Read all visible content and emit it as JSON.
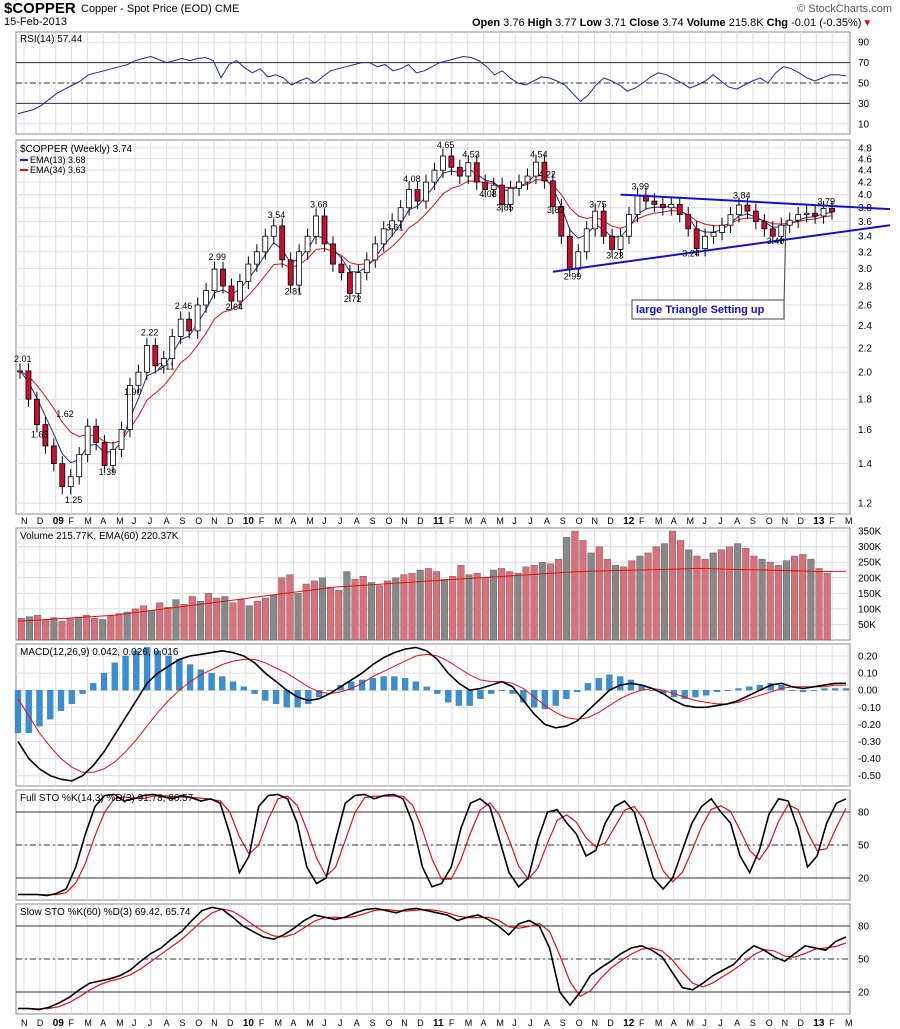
{
  "header": {
    "symbol": "$COPPER",
    "description": "Copper - Spot Price (EOD)",
    "exchange": "CME",
    "date": "15-Feb-2013",
    "open_label": "Open",
    "open": "3.76",
    "high_label": "High",
    "high": "3.77",
    "low_label": "Low",
    "low": "3.71",
    "close_label": "Close",
    "close": "3.74",
    "volume_label": "Volume",
    "volume": "215.8K",
    "chg_label": "Chg",
    "chg": "-0.01 (-0.35%)",
    "watermark": "© StockCharts.com"
  },
  "colors": {
    "price_line": "#000000",
    "ema13": "#1a2a9a",
    "ema34": "#e01010",
    "volume_up": "#888888",
    "volume_down": "#d9707a",
    "macd_hist": "#3a8fd0",
    "trendline": "#1010d0",
    "grid": "#dcdcdc"
  },
  "chart_data": [
    {
      "type": "line",
      "panel": "rsi",
      "label": "RSI(14) 57.44",
      "yticks": [
        "90",
        "70",
        "50",
        "30",
        "10"
      ],
      "ylim": [
        0,
        100
      ],
      "values": [
        20,
        22,
        24,
        28,
        34,
        40,
        44,
        48,
        52,
        58,
        60,
        62,
        64,
        66,
        68,
        72,
        74,
        76,
        73,
        70,
        72,
        74,
        72,
        74,
        75,
        72,
        55,
        68,
        72,
        65,
        60,
        64,
        56,
        58,
        55,
        48,
        52,
        55,
        50,
        56,
        62,
        64,
        66,
        68,
        70,
        70,
        66,
        68,
        62,
        64,
        68,
        60,
        62,
        66,
        70,
        72,
        74,
        76,
        75,
        72,
        66,
        58,
        62,
        55,
        50,
        48,
        52,
        56,
        55,
        52,
        48,
        40,
        32,
        38,
        48,
        55,
        52,
        48,
        42,
        45,
        50,
        56,
        60,
        58,
        54,
        50,
        45,
        48,
        52,
        58,
        52,
        46,
        44,
        48,
        52,
        55,
        50,
        60,
        66,
        64,
        60,
        55,
        52,
        55,
        58,
        58,
        57
      ]
    },
    {
      "type": "candlestick",
      "panel": "price",
      "label": "$COPPER (Weekly) 3.74",
      "legend": [
        "EMA(13) 3.68",
        "EMA(34) 3.63"
      ],
      "yticks": [
        "4.8",
        "4.6",
        "4.4",
        "4.2",
        "4.0",
        "3.8",
        "3.6",
        "3.4",
        "3.2",
        "3.0",
        "2.8",
        "2.6",
        "2.4",
        "2.2",
        "2.0",
        "1.8",
        "1.6",
        "1.4",
        "1.2"
      ],
      "scale": "log",
      "ylim": [
        1.15,
        4.95
      ],
      "closes": [
        2.01,
        1.8,
        1.63,
        1.5,
        1.4,
        1.28,
        1.33,
        1.45,
        1.62,
        1.52,
        1.39,
        1.48,
        1.6,
        1.9,
        2.0,
        2.22,
        2.05,
        2.11,
        2.3,
        2.46,
        2.35,
        2.6,
        2.75,
        2.99,
        2.8,
        2.64,
        2.85,
        3.05,
        3.2,
        3.4,
        3.54,
        3.1,
        2.81,
        3.2,
        3.4,
        3.68,
        3.3,
        3.05,
        2.95,
        2.72,
        2.95,
        3.1,
        3.3,
        3.5,
        3.61,
        3.8,
        4.08,
        3.9,
        4.2,
        4.4,
        4.65,
        4.45,
        4.3,
        4.53,
        4.2,
        4.08,
        4.15,
        3.85,
        4.1,
        4.2,
        4.3,
        4.54,
        4.22,
        3.82,
        3.4,
        2.99,
        3.2,
        3.5,
        3.75,
        3.4,
        3.23,
        3.4,
        3.7,
        3.99,
        3.9,
        3.85,
        3.8,
        3.85,
        3.7,
        3.5,
        3.24,
        3.4,
        3.45,
        3.55,
        3.7,
        3.84,
        3.75,
        3.6,
        3.5,
        3.4,
        3.55,
        3.62,
        3.7,
        3.72,
        3.68,
        3.79,
        3.74
      ],
      "annotations": [
        "2.01",
        "1.63",
        "1.62",
        "1.25",
        "1.39",
        "1.90",
        "2.22",
        "2.11",
        "2.46",
        "2.99",
        "2.64",
        "3.54",
        "2.81",
        "3.68",
        "2.72",
        "3.61",
        "4.08",
        "4.65",
        "4.53",
        "4.08",
        "3.85",
        "4.54",
        "4.22",
        "3.82",
        "3.75",
        "2.99",
        "3.23",
        "3.99",
        "3.24",
        "3.84",
        "3.40",
        "3.79"
      ],
      "note": "large Triangle Setting up"
    },
    {
      "type": "bar",
      "panel": "volume",
      "label": "Volume 215.77K, EMA(60) 220.37K",
      "yticks": [
        "350K",
        "300K",
        "250K",
        "200K",
        "150K",
        "100K",
        "50K"
      ],
      "ylim": [
        0,
        360
      ],
      "values": [
        70,
        75,
        80,
        65,
        72,
        60,
        68,
        74,
        80,
        70,
        66,
        78,
        85,
        90,
        100,
        110,
        95,
        120,
        105,
        130,
        115,
        140,
        125,
        150,
        135,
        140,
        120,
        130,
        110,
        125,
        135,
        145,
        200,
        210,
        150,
        180,
        190,
        200,
        170,
        160,
        220,
        195,
        205,
        185,
        175,
        190,
        200,
        210,
        215,
        225,
        230,
        220,
        195,
        205,
        240,
        210,
        215,
        200,
        225,
        230,
        220,
        215,
        235,
        240,
        250,
        245,
        260,
        330,
        350,
        320,
        280,
        300,
        260,
        240,
        235,
        255,
        270,
        280,
        300,
        310,
        350,
        320,
        290,
        270,
        260,
        280,
        290,
        300,
        310,
        295,
        270,
        260,
        250,
        240,
        255,
        270,
        275,
        260,
        230,
        215
      ],
      "ema60": [
        60,
        65,
        70,
        75,
        80,
        90,
        100,
        110,
        120,
        130,
        140,
        150,
        160,
        170,
        175,
        180,
        185,
        190,
        195,
        200,
        205,
        210,
        215,
        220,
        222,
        224,
        226,
        228,
        230,
        228,
        226,
        224,
        222,
        220,
        221
      ]
    },
    {
      "type": "line",
      "panel": "macd",
      "label": "MACD(12,26,9) 0.042, 0.026, 0.016",
      "yticks": [
        "0.20",
        "0.10",
        "0.00",
        "-0.10",
        "-0.20",
        "-0.30",
        "-0.40",
        "-0.50"
      ],
      "ylim": [
        -0.56,
        0.27
      ],
      "macd": [
        -0.3,
        -0.4,
        -0.46,
        -0.5,
        -0.52,
        -0.53,
        -0.5,
        -0.44,
        -0.36,
        -0.26,
        -0.16,
        -0.06,
        0.04,
        0.1,
        0.14,
        0.18,
        0.2,
        0.21,
        0.22,
        0.23,
        0.22,
        0.2,
        0.16,
        0.1,
        0.05,
        0.0,
        -0.04,
        -0.06,
        -0.05,
        -0.02,
        0.02,
        0.06,
        0.1,
        0.15,
        0.19,
        0.22,
        0.24,
        0.25,
        0.23,
        0.18,
        0.1,
        0.04,
        0.0,
        0.01,
        0.03,
        0.05,
        0.02,
        -0.06,
        -0.14,
        -0.2,
        -0.22,
        -0.21,
        -0.18,
        -0.12,
        -0.06,
        0.0,
        0.03,
        0.04,
        0.03,
        0.01,
        -0.02,
        -0.06,
        -0.09,
        -0.1,
        -0.1,
        -0.09,
        -0.08,
        -0.06,
        -0.03,
        0.0,
        0.03,
        0.04,
        0.02,
        0.01,
        0.02,
        0.03,
        0.04,
        0.04
      ],
      "signal": [
        -0.05,
        -0.15,
        -0.25,
        -0.33,
        -0.4,
        -0.45,
        -0.48,
        -0.48,
        -0.46,
        -0.42,
        -0.36,
        -0.29,
        -0.21,
        -0.13,
        -0.06,
        0.0,
        0.05,
        0.09,
        0.12,
        0.15,
        0.17,
        0.18,
        0.18,
        0.16,
        0.13,
        0.1,
        0.06,
        0.02,
        -0.01,
        -0.02,
        -0.01,
        0.01,
        0.04,
        0.08,
        0.11,
        0.14,
        0.17,
        0.2,
        0.21,
        0.2,
        0.17,
        0.13,
        0.09,
        0.06,
        0.05,
        0.05,
        0.04,
        0.01,
        -0.04,
        -0.09,
        -0.13,
        -0.16,
        -0.17,
        -0.16,
        -0.13,
        -0.09,
        -0.05,
        -0.02,
        0.0,
        0.01,
        0.0,
        -0.02,
        -0.04,
        -0.06,
        -0.07,
        -0.08,
        -0.08,
        -0.07,
        -0.05,
        -0.03,
        -0.01,
        0.01,
        0.02,
        0.02,
        0.02,
        0.02,
        0.03,
        0.03
      ]
    },
    {
      "type": "line",
      "panel": "full_sto",
      "label": "Full STO %K(14,3) %D(3) 91.78, 86.57",
      "yticks": [
        "80",
        "50",
        "20"
      ],
      "ylim": [
        0,
        100
      ],
      "k": [
        5,
        5,
        5,
        4,
        6,
        10,
        30,
        60,
        85,
        95,
        96,
        90,
        92,
        95,
        96,
        94,
        92,
        95,
        93,
        90,
        92,
        88,
        60,
        25,
        40,
        85,
        95,
        96,
        92,
        70,
        30,
        15,
        20,
        55,
        88,
        95,
        96,
        92,
        95,
        96,
        92,
        70,
        30,
        12,
        15,
        30,
        65,
        88,
        92,
        85,
        55,
        25,
        12,
        20,
        55,
        80,
        82,
        70,
        60,
        40,
        45,
        70,
        85,
        90,
        80,
        50,
        20,
        10,
        20,
        45,
        70,
        85,
        92,
        80,
        70,
        40,
        25,
        45,
        78,
        92,
        90,
        65,
        30,
        40,
        70,
        88,
        92
      ]
    },
    {
      "type": "line",
      "panel": "slow_sto",
      "label": "Slow STO %K(60) %D(3) 69.42, 65.74",
      "yticks": [
        "80",
        "50",
        "20"
      ],
      "ylim": [
        0,
        100
      ],
      "k": [
        5,
        5,
        4,
        6,
        10,
        15,
        22,
        28,
        30,
        32,
        35,
        40,
        48,
        55,
        60,
        68,
        75,
        85,
        94,
        97,
        95,
        88,
        80,
        75,
        70,
        68,
        72,
        78,
        85,
        90,
        88,
        86,
        88,
        92,
        95,
        96,
        94,
        92,
        95,
        96,
        94,
        92,
        90,
        85,
        88,
        90,
        86,
        80,
        72,
        82,
        85,
        80,
        60,
        20,
        8,
        20,
        35,
        42,
        48,
        55,
        60,
        62,
        58,
        52,
        38,
        24,
        22,
        28,
        35,
        40,
        45,
        55,
        62,
        58,
        52,
        48,
        55,
        62,
        60,
        58,
        66,
        70
      ]
    }
  ],
  "xaxis": {
    "labels": [
      "N",
      "D",
      "09",
      "F",
      "M",
      "A",
      "M",
      "J",
      "J",
      "A",
      "S",
      "O",
      "N",
      "D",
      "10",
      "F",
      "M",
      "A",
      "M",
      "J",
      "J",
      "A",
      "S",
      "O",
      "N",
      "D",
      "11",
      "F",
      "M",
      "A",
      "M",
      "J",
      "J",
      "A",
      "S",
      "O",
      "N",
      "D",
      "12",
      "F",
      "M",
      "A",
      "M",
      "J",
      "J",
      "A",
      "S",
      "O",
      "N",
      "D",
      "13",
      "F",
      "M"
    ],
    "bold": [
      "09",
      "10",
      "11",
      "12",
      "13"
    ]
  }
}
